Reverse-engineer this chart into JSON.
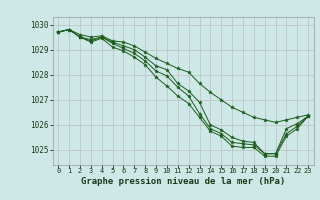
{
  "title": "Graphe pression niveau de la mer (hPa)",
  "background_color": "#cee8e8",
  "grid_color": "#bbbbbb",
  "line_color": "#1a5c1a",
  "xlim": [
    -0.5,
    23.5
  ],
  "ylim": [
    1024.4,
    1030.3
  ],
  "yticks": [
    1025,
    1026,
    1027,
    1028,
    1029,
    1030
  ],
  "xticks": [
    0,
    1,
    2,
    3,
    4,
    5,
    6,
    7,
    8,
    9,
    10,
    11,
    12,
    13,
    14,
    15,
    16,
    17,
    18,
    19,
    20,
    21,
    22,
    23
  ],
  "series": [
    {
      "x": [
        0,
        1,
        2,
        3,
        4,
        5,
        6,
        7,
        8,
        9,
        10,
        11,
        12,
        13,
        14,
        15,
        16,
        17,
        18,
        19,
        20,
        21,
        22,
        23
      ],
      "y": [
        1029.7,
        1029.8,
        1029.6,
        1029.5,
        1029.55,
        1029.35,
        1029.3,
        1029.15,
        1028.9,
        1028.65,
        1028.45,
        1028.25,
        1028.1,
        1027.65,
        1027.3,
        1027.0,
        1026.7,
        1026.5,
        1026.3,
        1026.2,
        1026.1,
        1026.2,
        1026.3,
        1026.4
      ]
    },
    {
      "x": [
        0,
        1,
        2,
        3,
        4,
        5,
        6,
        7,
        8,
        9,
        10,
        11,
        12,
        13,
        14,
        15,
        16,
        17,
        18,
        19,
        20,
        21,
        22,
        23
      ],
      "y": [
        1029.7,
        1029.8,
        1029.5,
        1029.4,
        1029.5,
        1029.3,
        1029.15,
        1029.0,
        1028.7,
        1028.35,
        1028.2,
        1027.65,
        1027.35,
        1026.9,
        1026.0,
        1025.8,
        1025.5,
        1025.35,
        1025.3,
        1024.85,
        1024.85,
        1025.85,
        1026.05,
        1026.35
      ]
    },
    {
      "x": [
        0,
        1,
        2,
        3,
        4,
        5,
        6,
        7,
        8,
        9,
        10,
        11,
        12,
        13,
        14,
        15,
        16,
        17,
        18,
        19,
        20,
        21,
        22,
        23
      ],
      "y": [
        1029.7,
        1029.8,
        1029.5,
        1029.35,
        1029.5,
        1029.25,
        1029.05,
        1028.85,
        1028.55,
        1028.15,
        1027.95,
        1027.5,
        1027.15,
        1026.45,
        1025.85,
        1025.65,
        1025.3,
        1025.25,
        1025.2,
        1024.85,
        1024.85,
        1025.65,
        1025.95,
        1026.35
      ]
    },
    {
      "x": [
        0,
        1,
        2,
        3,
        4,
        5,
        6,
        7,
        8,
        9,
        10,
        11,
        12,
        13,
        14,
        15,
        16,
        17,
        18,
        19,
        20,
        21,
        22,
        23
      ],
      "y": [
        1029.7,
        1029.8,
        1029.5,
        1029.3,
        1029.45,
        1029.1,
        1028.95,
        1028.7,
        1028.4,
        1027.9,
        1027.55,
        1027.15,
        1026.85,
        1026.3,
        1025.75,
        1025.55,
        1025.15,
        1025.1,
        1025.1,
        1024.75,
        1024.75,
        1025.55,
        1025.85,
        1026.35
      ]
    }
  ],
  "title_fontsize": 6.5,
  "tick_fontsize": 5.0,
  "ytick_fontsize": 5.5
}
